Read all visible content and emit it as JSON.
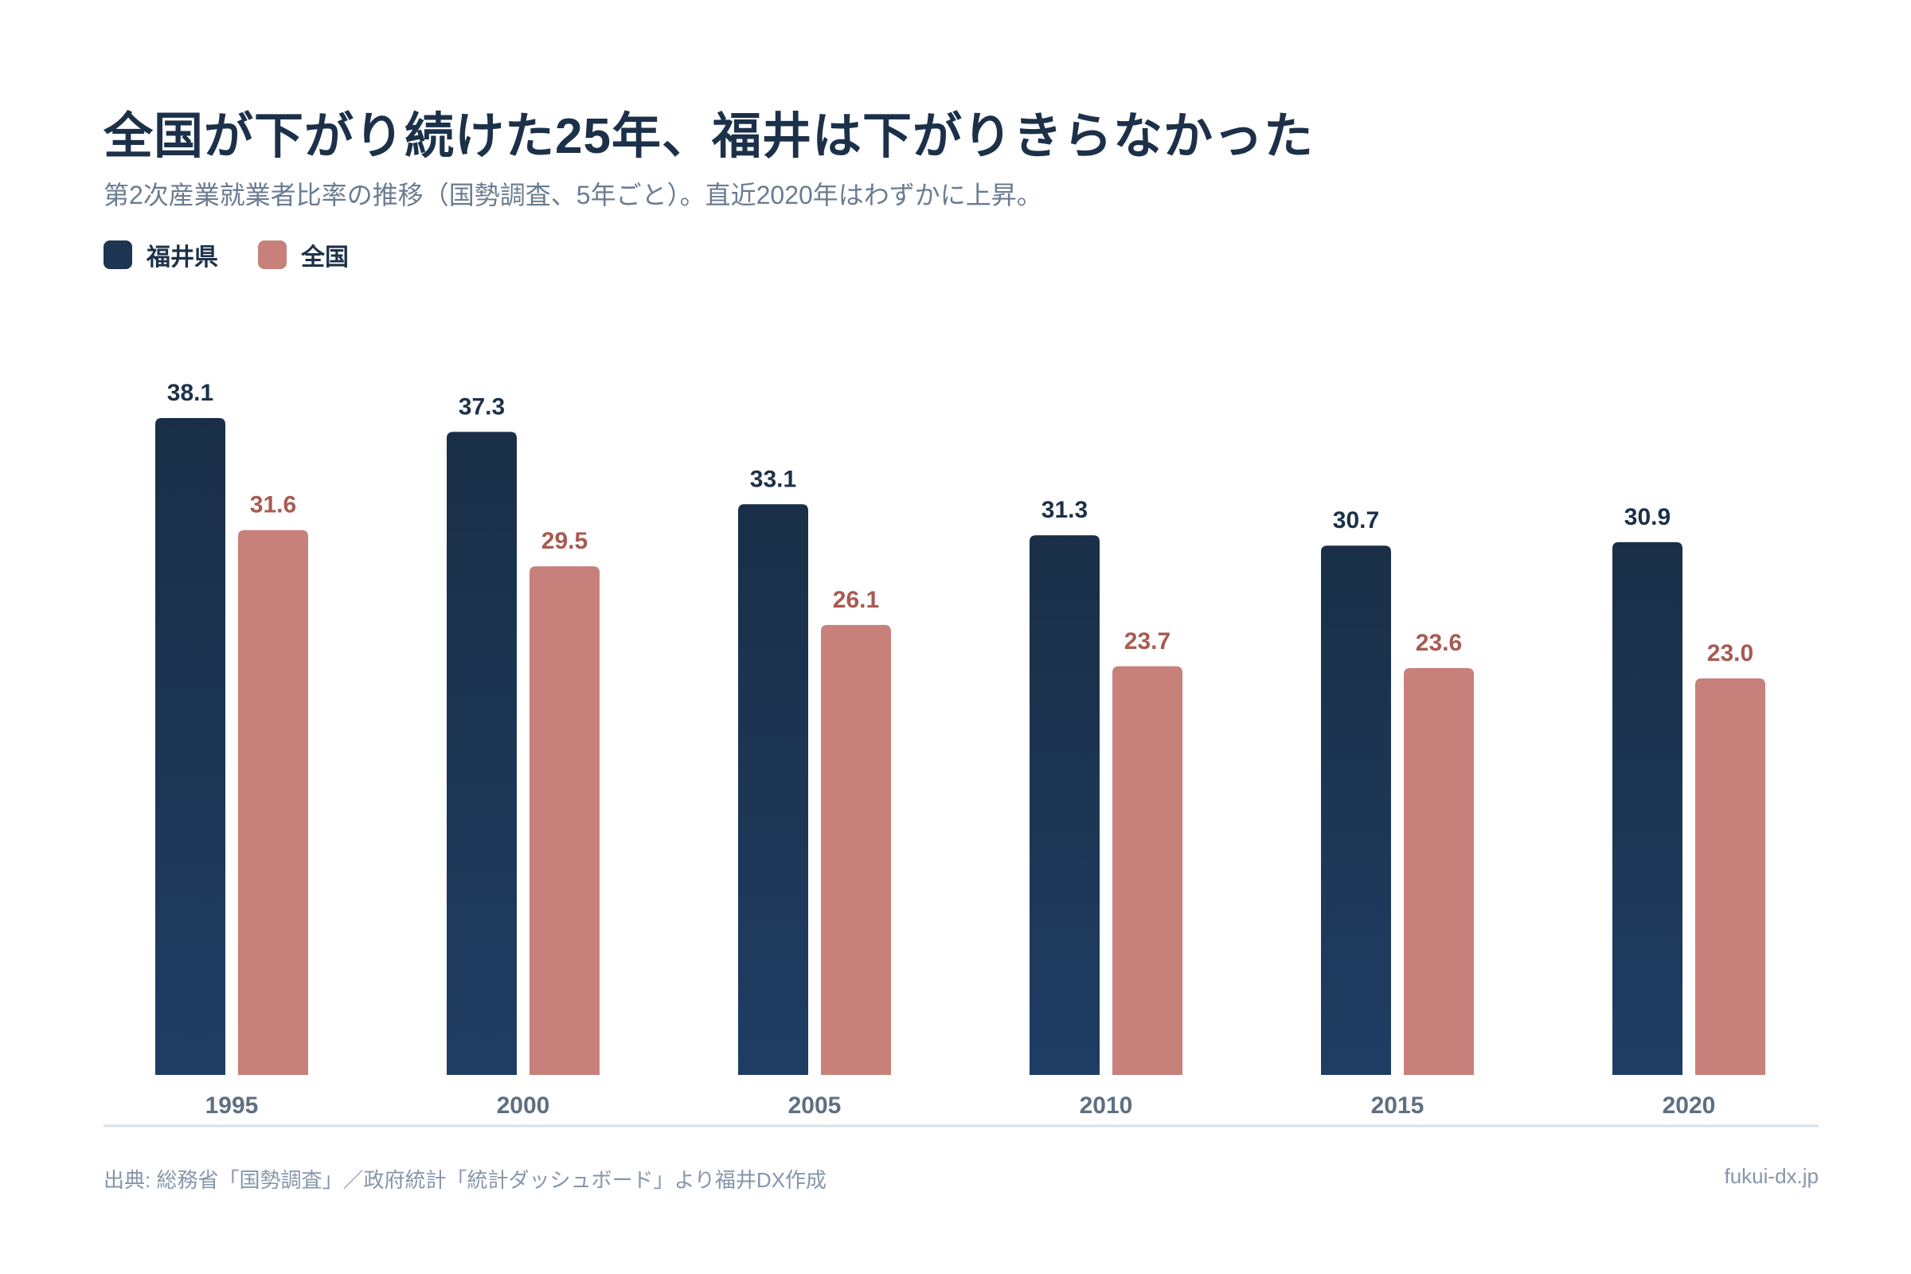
{
  "header": {
    "title": "全国が下がり続けた25年、福井は下がりきらなかった",
    "subtitle": "第2次産業就業者比率の推移（国勢調査、5年ごと）。直近2020年はわずかに上昇。"
  },
  "legend": [
    {
      "label": "福井県",
      "color": "#1c3553"
    },
    {
      "label": "全国",
      "color": "#c8807a"
    }
  ],
  "chart_data": {
    "type": "bar",
    "categories": [
      "1995",
      "2000",
      "2005",
      "2010",
      "2015",
      "2020"
    ],
    "series": [
      {
        "name": "福井県",
        "values": [
          38.1,
          37.3,
          33.1,
          31.3,
          30.7,
          30.9
        ],
        "color": "#1c3553",
        "label_color": "#1c3149"
      },
      {
        "name": "全国",
        "values": [
          31.6,
          29.5,
          26.1,
          23.7,
          23.6,
          23.0
        ],
        "color": "#c8807a",
        "label_color": "#a85a52"
      }
    ],
    "ylim": [
      0,
      40
    ],
    "grid": false,
    "legend_position": "top-left"
  },
  "footer": {
    "source": "出典: 総務省「国勢調査」／政府統計「統計ダッシュボード」より福井DX作成",
    "site": "fukui-dx.jp"
  }
}
